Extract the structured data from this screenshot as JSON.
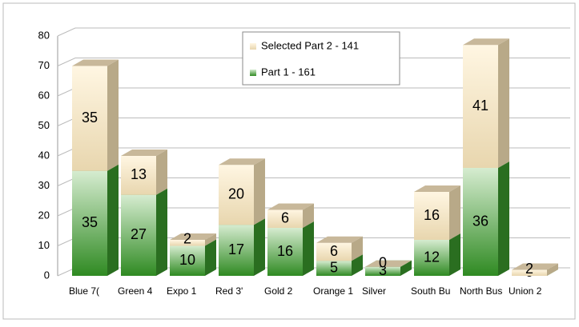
{
  "chart_data": {
    "type": "bar3d_stacked",
    "categories": [
      "Blue 7(",
      "Green 4",
      "Expo 1",
      "Red 3'",
      "Gold 2",
      "Orange 1",
      "Silver",
      "South Bu",
      "North Bus",
      "Union 2"
    ],
    "series": [
      {
        "name": "Part 1 - 161",
        "color": "#3a8f2a",
        "values": [
          35,
          27,
          10,
          17,
          16,
          5,
          3,
          12,
          36,
          0
        ]
      },
      {
        "name": "Selected Part 2 - 141",
        "color": "#f5e6c4",
        "values": [
          35,
          13,
          2,
          20,
          6,
          6,
          0,
          16,
          41,
          2
        ]
      }
    ],
    "ylim": [
      0,
      80
    ],
    "yticks": [
      0,
      10,
      20,
      30,
      40,
      50,
      60,
      70,
      80
    ],
    "grid": true
  }
}
